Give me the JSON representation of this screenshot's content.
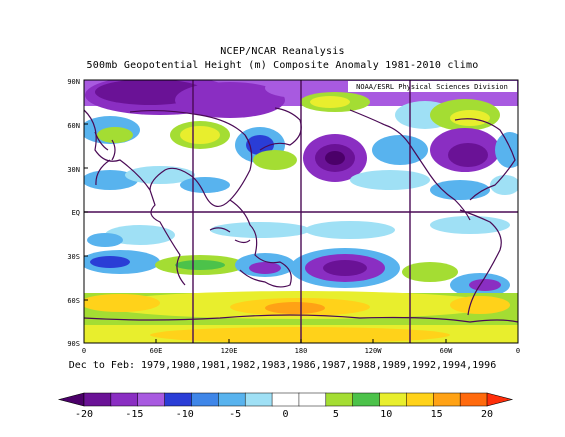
{
  "title": "NCEP/NCAR Reanalysis",
  "subtitle": "500mb Geopotential Height (m) Composite Anomaly 1981-2010 climo",
  "credit": "NOAA/ESRL Physical Sciences Division",
  "footer": "Dec to Feb: 1979,1980,1981,1982,1983,1986,1987,1988,1989,1992,1994,1996",
  "lat_labels": [
    "90N",
    "60N",
    "30N",
    "EQ",
    "30S",
    "60S",
    "90S"
  ],
  "lon_labels": [
    "0",
    "60E",
    "120E",
    "180",
    "120W",
    "60W",
    "0"
  ],
  "legend": {
    "ticks": [
      "-20",
      "-15",
      "-10",
      "-5",
      "0",
      "5",
      "10",
      "15",
      "20"
    ],
    "colors": [
      "#4b0069",
      "#6a1296",
      "#8a2ec2",
      "#a85ae0",
      "#2a3dd6",
      "#3f86e8",
      "#58b3ee",
      "#9fe0f5",
      "#ffffff",
      "#ffffff",
      "#a4dd33",
      "#4cc24a",
      "#e8ee2d",
      "#ffd21a",
      "#ffa215",
      "#ff6a0d",
      "#ff2e0a"
    ]
  },
  "colors": {
    "coast": "#4a0a55",
    "grid": "#4a0a55"
  }
}
